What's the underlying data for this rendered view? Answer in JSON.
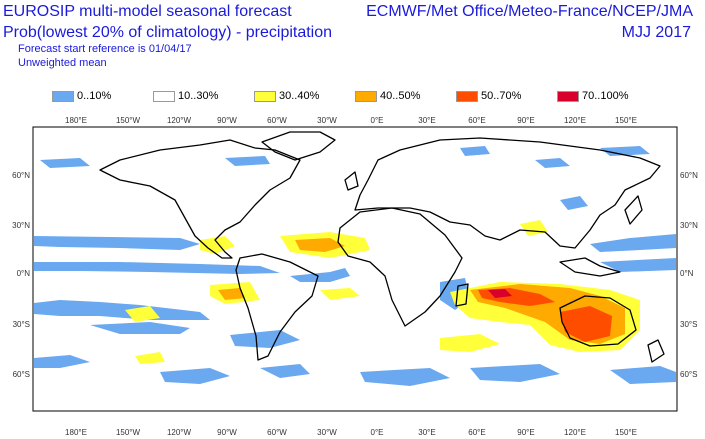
{
  "header": {
    "title_line1": "EUROSIP multi-model seasonal forecast",
    "title_line2": "Prob(lowest 20% of climatology) - precipitation",
    "forecast_ref": "Forecast start reference is 01/04/17",
    "mean_type": "Unweighted mean",
    "agencies": "ECMWF/Met Office/Meteo-France/NCEP/JMA",
    "period": "MJJ 2017"
  },
  "legend": [
    {
      "label": "0..10%",
      "color": "#6aa8f0"
    },
    {
      "label": "10..30%",
      "color": "#ffffff"
    },
    {
      "label": "30..40%",
      "color": "#ffff3a"
    },
    {
      "label": "40..50%",
      "color": "#ffaa00"
    },
    {
      "label": "50..70%",
      "color": "#ff4d00"
    },
    {
      "label": "70..100%",
      "color": "#d8002a"
    }
  ],
  "map": {
    "longitude_labels": [
      "180°E",
      "150°W",
      "120°W",
      "90°W",
      "60°W",
      "30°W",
      "0°E",
      "30°E",
      "60°E",
      "90°E",
      "120°E",
      "150°E"
    ],
    "latitude_labels": [
      "60°N",
      "30°N",
      "0°N",
      "30°S",
      "60°S"
    ]
  }
}
